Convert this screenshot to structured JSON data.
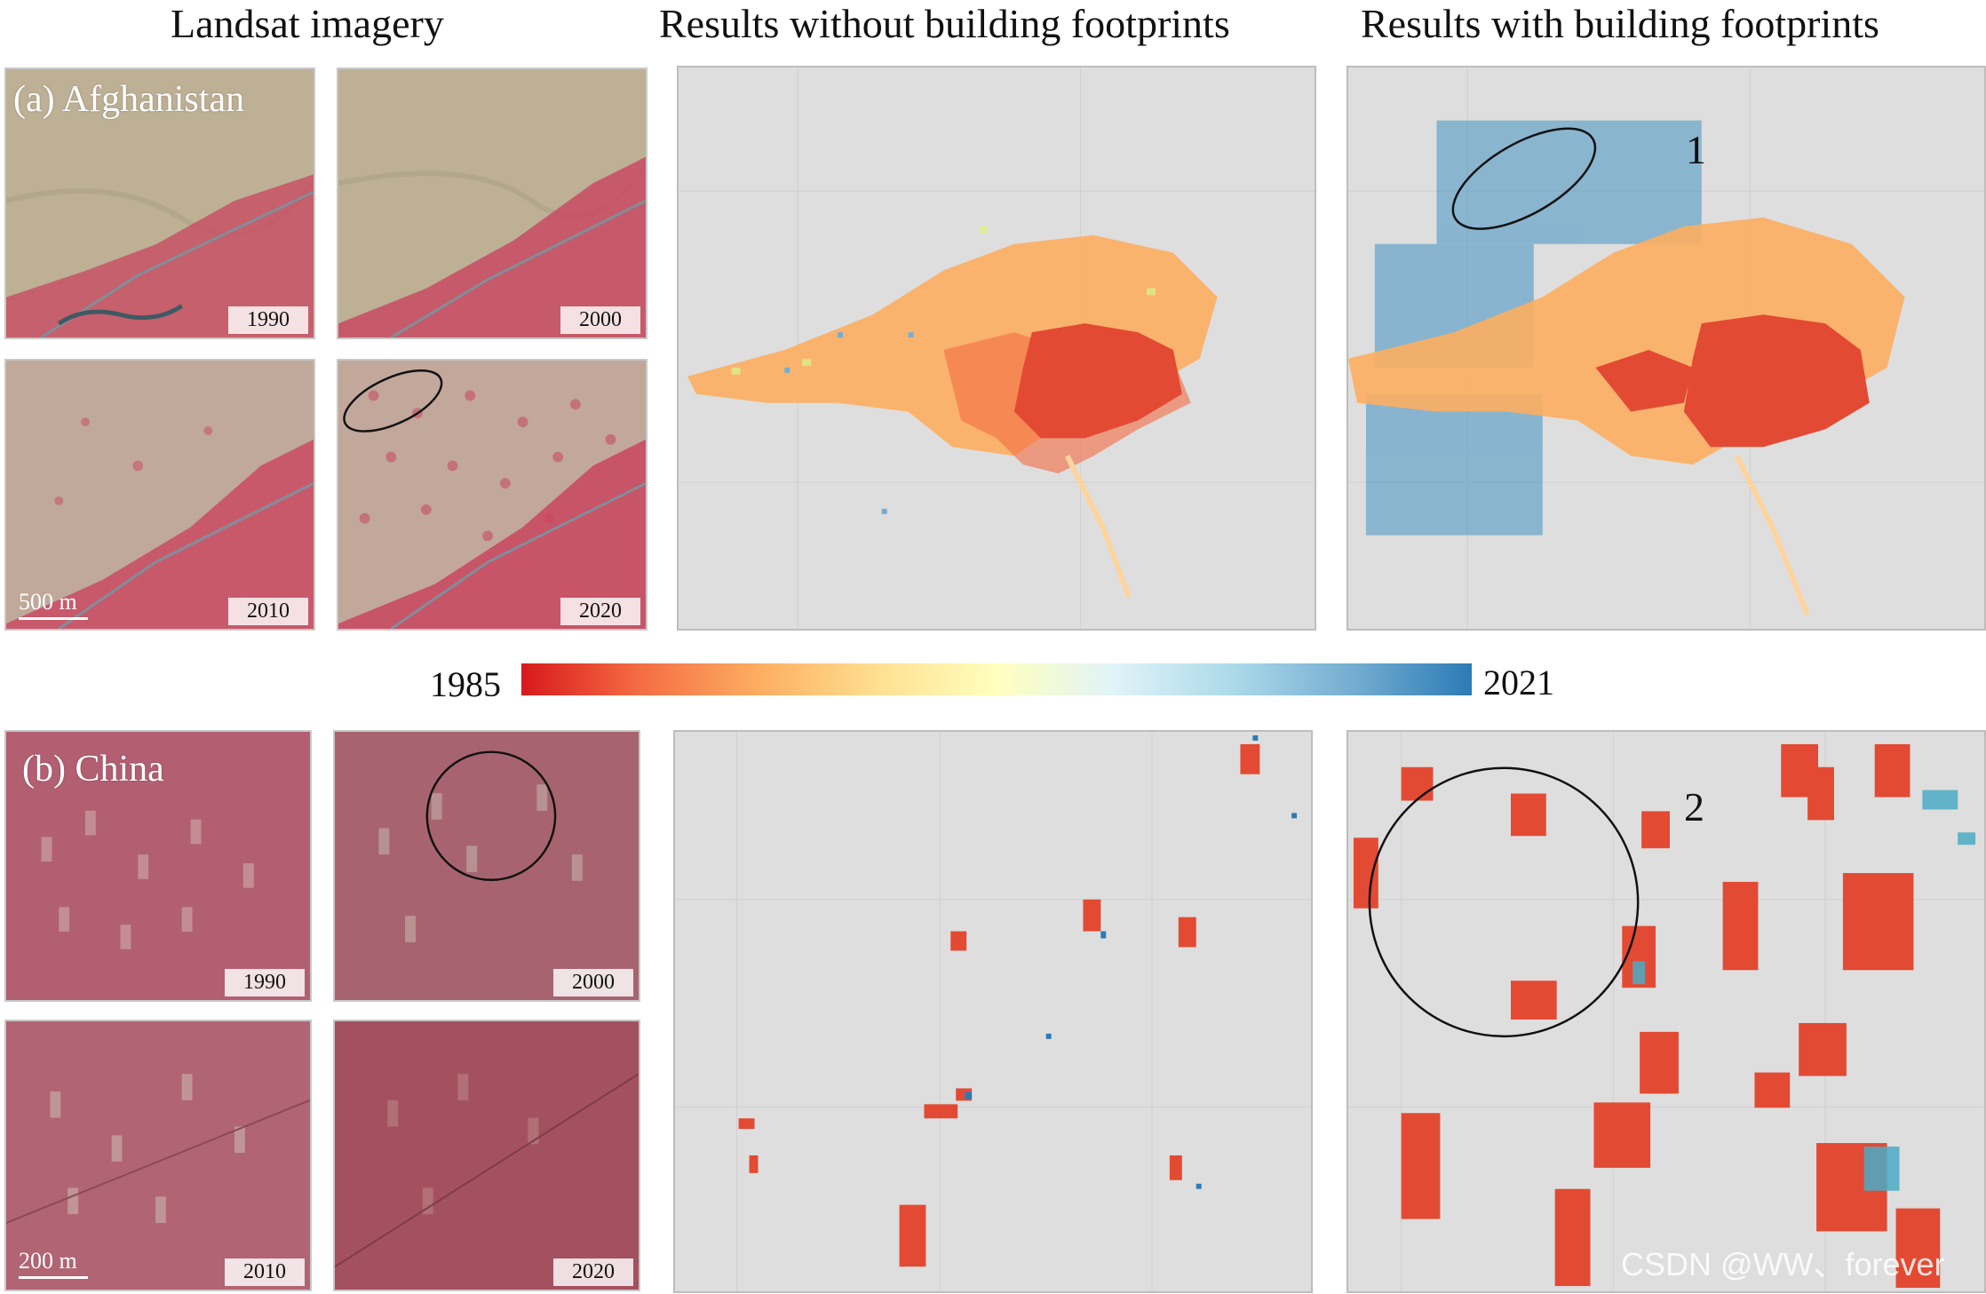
{
  "headers": {
    "landsat": "Landsat imagery",
    "without": "Results without building footprints",
    "with": "Results with building footprints"
  },
  "afghanistan": {
    "label": "(a) Afghanistan",
    "years": [
      "1990",
      "2000",
      "2010",
      "2020"
    ],
    "scale": "500 m",
    "marker": "1"
  },
  "china": {
    "label": "(b) China",
    "years": [
      "1990",
      "2000",
      "2010",
      "2020"
    ],
    "scale": "200 m",
    "marker": "2"
  },
  "colorbar": {
    "start": "1985",
    "end": "2021",
    "colors": [
      "#d7191c",
      "#f46d43",
      "#fdae61",
      "#fee090",
      "#ffffbf",
      "#e0f3f8",
      "#abd9e9",
      "#74add1",
      "#2c7bb6"
    ]
  },
  "colors": {
    "map_background": "#dedede",
    "desert": "#bcae92",
    "vegetation": "#c9455f",
    "china_land": "#b45a6c"
  },
  "watermark": "CSDN @WW、forever"
}
